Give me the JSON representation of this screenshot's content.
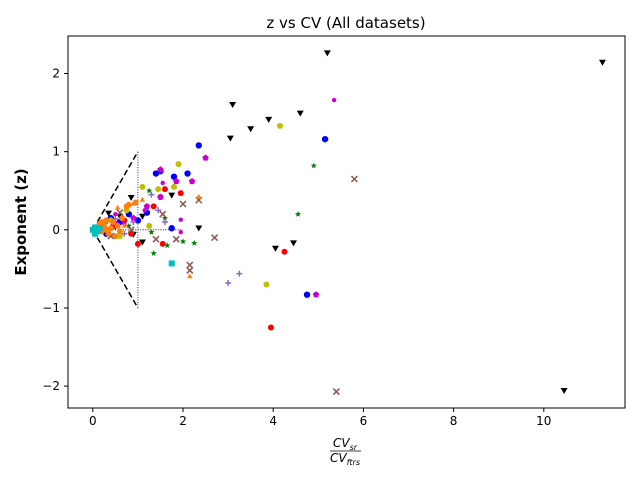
{
  "chart_data": {
    "type": "scatter",
    "title": "z vs CV (All datasets)",
    "xlabel_numerator": "CV",
    "xlabel_numerator_sub": "sr",
    "xlabel_denominator": "CV",
    "xlabel_denominator_sub": "ftrs",
    "ylabel": "Exponent (z)",
    "xlim": [
      -0.55,
      11.8
    ],
    "ylim": [
      -2.28,
      2.48
    ],
    "x_ticks": [
      0,
      2,
      4,
      6,
      8,
      10
    ],
    "y_ticks": [
      -2,
      -1,
      0,
      1,
      2
    ],
    "x_tick_labels": [
      "0",
      "2",
      "4",
      "6",
      "8",
      "10"
    ],
    "y_tick_labels": [
      "−2",
      "−1",
      "0",
      "1",
      "2"
    ],
    "grid": false,
    "legend": "none",
    "reference_lines": {
      "dashed_wedge": [
        [
          [
            0,
            0
          ],
          [
            1,
            1
          ]
        ],
        [
          [
            0,
            0
          ],
          [
            1,
            -1
          ]
        ]
      ],
      "dotted_vertical": [
        [
          1,
          -1
        ],
        [
          1,
          1
        ]
      ],
      "dotted_horizontal": [
        [
          0,
          0
        ],
        [
          2,
          0
        ]
      ]
    },
    "series": [
      {
        "color": "#000000",
        "marker": "triangle-down",
        "size": 4,
        "points": [
          [
            5.2,
            2.27
          ],
          [
            11.3,
            2.15
          ],
          [
            3.1,
            1.61
          ],
          [
            4.6,
            1.5
          ],
          [
            3.9,
            1.42
          ],
          [
            3.5,
            1.3
          ],
          [
            3.05,
            1.18
          ],
          [
            0.85,
            0.42
          ],
          [
            1.75,
            0.45
          ],
          [
            2.35,
            0.03
          ],
          [
            1.1,
            0.18
          ],
          [
            4.05,
            -0.23
          ],
          [
            4.45,
            -0.16
          ],
          [
            10.45,
            -2.05
          ],
          [
            0.35,
            0.22
          ],
          [
            0.6,
            0.18
          ],
          [
            0.25,
            0.1
          ],
          [
            0.5,
            0.05
          ],
          [
            0.9,
            -0.05
          ],
          [
            1.1,
            -0.15
          ]
        ]
      },
      {
        "color": "#0000ff",
        "marker": "circle",
        "size": 3.2,
        "points": [
          [
            2.35,
            1.08
          ],
          [
            5.15,
            1.16
          ],
          [
            1.5,
            0.75
          ],
          [
            1.4,
            0.72
          ],
          [
            1.8,
            0.68
          ],
          [
            2.1,
            0.72
          ],
          [
            4.75,
            -0.83
          ],
          [
            1.75,
            0.02
          ],
          [
            1.2,
            0.22
          ],
          [
            0.4,
            0.15
          ],
          [
            0.6,
            0.1
          ],
          [
            0.2,
            0.05
          ],
          [
            0.8,
            0.2
          ],
          [
            1.0,
            0.12
          ],
          [
            0.3,
            -0.05
          ]
        ]
      },
      {
        "color": "#ff0000",
        "marker": "circle",
        "size": 3,
        "points": [
          [
            3.95,
            -1.25
          ],
          [
            4.25,
            -0.28
          ],
          [
            1.95,
            0.47
          ],
          [
            1.35,
            0.3
          ],
          [
            1.6,
            0.52
          ],
          [
            1.55,
            -0.18
          ],
          [
            1.0,
            -0.18
          ],
          [
            1.5,
            0.42
          ],
          [
            0.45,
            0.05
          ],
          [
            0.7,
            0.12
          ],
          [
            0.85,
            -0.05
          ]
        ]
      },
      {
        "color": "#cc00cc",
        "marker": "circle",
        "size": 2.2,
        "points": [
          [
            5.35,
            1.66
          ],
          [
            1.95,
            -0.03
          ],
          [
            1.95,
            0.13
          ],
          [
            1.55,
            0.6
          ],
          [
            1.15,
            0.25
          ],
          [
            0.5,
            0.2
          ],
          [
            0.7,
            0.08
          ]
        ]
      },
      {
        "color": "#bfbf00",
        "marker": "circle",
        "size": 3,
        "points": [
          [
            4.15,
            1.33
          ],
          [
            3.85,
            -0.7
          ],
          [
            1.9,
            0.84
          ],
          [
            1.1,
            0.55
          ],
          [
            1.45,
            0.52
          ],
          [
            1.8,
            0.55
          ],
          [
            0.6,
            -0.08
          ],
          [
            0.4,
            0.12
          ],
          [
            0.75,
            0.25
          ],
          [
            1.25,
            0.05
          ]
        ]
      },
      {
        "color": "#cc00cc",
        "marker": "pentagon",
        "size": 3.4,
        "points": [
          [
            2.5,
            0.92
          ],
          [
            1.5,
            0.77
          ],
          [
            1.85,
            0.62
          ],
          [
            1.5,
            0.42
          ],
          [
            2.2,
            0.62
          ],
          [
            4.95,
            -0.83
          ],
          [
            1.2,
            0.3
          ],
          [
            0.9,
            0.15
          ],
          [
            0.5,
            0.08
          ]
        ]
      },
      {
        "color": "#008000",
        "marker": "star",
        "size": 3.2,
        "points": [
          [
            4.9,
            0.82
          ],
          [
            4.55,
            0.2
          ],
          [
            2.25,
            -0.17
          ],
          [
            2.0,
            -0.15
          ],
          [
            1.35,
            -0.3
          ],
          [
            1.65,
            -0.2
          ],
          [
            1.25,
            0.5
          ],
          [
            1.3,
            -0.03
          ],
          [
            1.6,
            0.15
          ],
          [
            0.8,
            0.05
          ],
          [
            0.6,
            -0.02
          ],
          [
            0.3,
            0.1
          ]
        ]
      },
      {
        "color": "#8c564b",
        "marker": "x",
        "size": 3,
        "points": [
          [
            5.8,
            0.65
          ],
          [
            5.4,
            -2.07
          ],
          [
            2.7,
            -0.1
          ],
          [
            2.35,
            0.38
          ],
          [
            2.0,
            0.33
          ],
          [
            2.15,
            -0.45
          ],
          [
            2.15,
            -0.52
          ],
          [
            1.85,
            -0.12
          ],
          [
            1.4,
            -0.12
          ],
          [
            1.55,
            0.2
          ],
          [
            0.6,
            0.22
          ],
          [
            0.85,
            0.0
          ],
          [
            0.4,
            -0.08
          ]
        ]
      },
      {
        "color": "#9467bd",
        "marker": "plus",
        "size": 3,
        "points": [
          [
            3.0,
            -0.68
          ],
          [
            3.25,
            -0.56
          ],
          [
            1.45,
            0.25
          ],
          [
            1.6,
            0.1
          ],
          [
            1.3,
            0.45
          ],
          [
            0.9,
            0.1
          ],
          [
            0.5,
            0.14
          ],
          [
            0.7,
            -0.05
          ]
        ]
      },
      {
        "color": "#ff7f0e",
        "marker": "triangle-up",
        "size": 3.2,
        "points": [
          [
            2.15,
            -0.6
          ],
          [
            2.35,
            0.42
          ],
          [
            1.1,
            0.38
          ],
          [
            0.55,
            0.28
          ],
          [
            0.7,
            0.05
          ],
          [
            0.9,
            0.33
          ]
        ]
      },
      {
        "color": "#ff7f0e",
        "marker": "circle",
        "size": 3,
        "points": [
          [
            0.1,
            0.02
          ],
          [
            0.15,
            0.08
          ],
          [
            0.2,
            -0.02
          ],
          [
            0.25,
            0.05
          ],
          [
            0.3,
            0.12
          ],
          [
            0.35,
            -0.05
          ],
          [
            0.4,
            0.02
          ],
          [
            0.45,
            0.1
          ],
          [
            0.5,
            -0.08
          ],
          [
            0.55,
            0.05
          ],
          [
            0.65,
            0.15
          ],
          [
            0.75,
            0.3
          ],
          [
            0.8,
            0.32
          ],
          [
            0.95,
            0.35
          ],
          [
            0.3,
            0.0
          ],
          [
            0.2,
            0.1
          ],
          [
            0.6,
            -0.02
          ]
        ]
      },
      {
        "color": "#00bfbf",
        "marker": "square",
        "size": 3,
        "points": [
          [
            1.75,
            -0.43
          ],
          [
            0.0,
            0.0
          ],
          [
            0.05,
            0.03
          ],
          [
            0.1,
            -0.02
          ],
          [
            0.15,
            0.02
          ],
          [
            0.05,
            -0.05
          ]
        ]
      }
    ]
  }
}
